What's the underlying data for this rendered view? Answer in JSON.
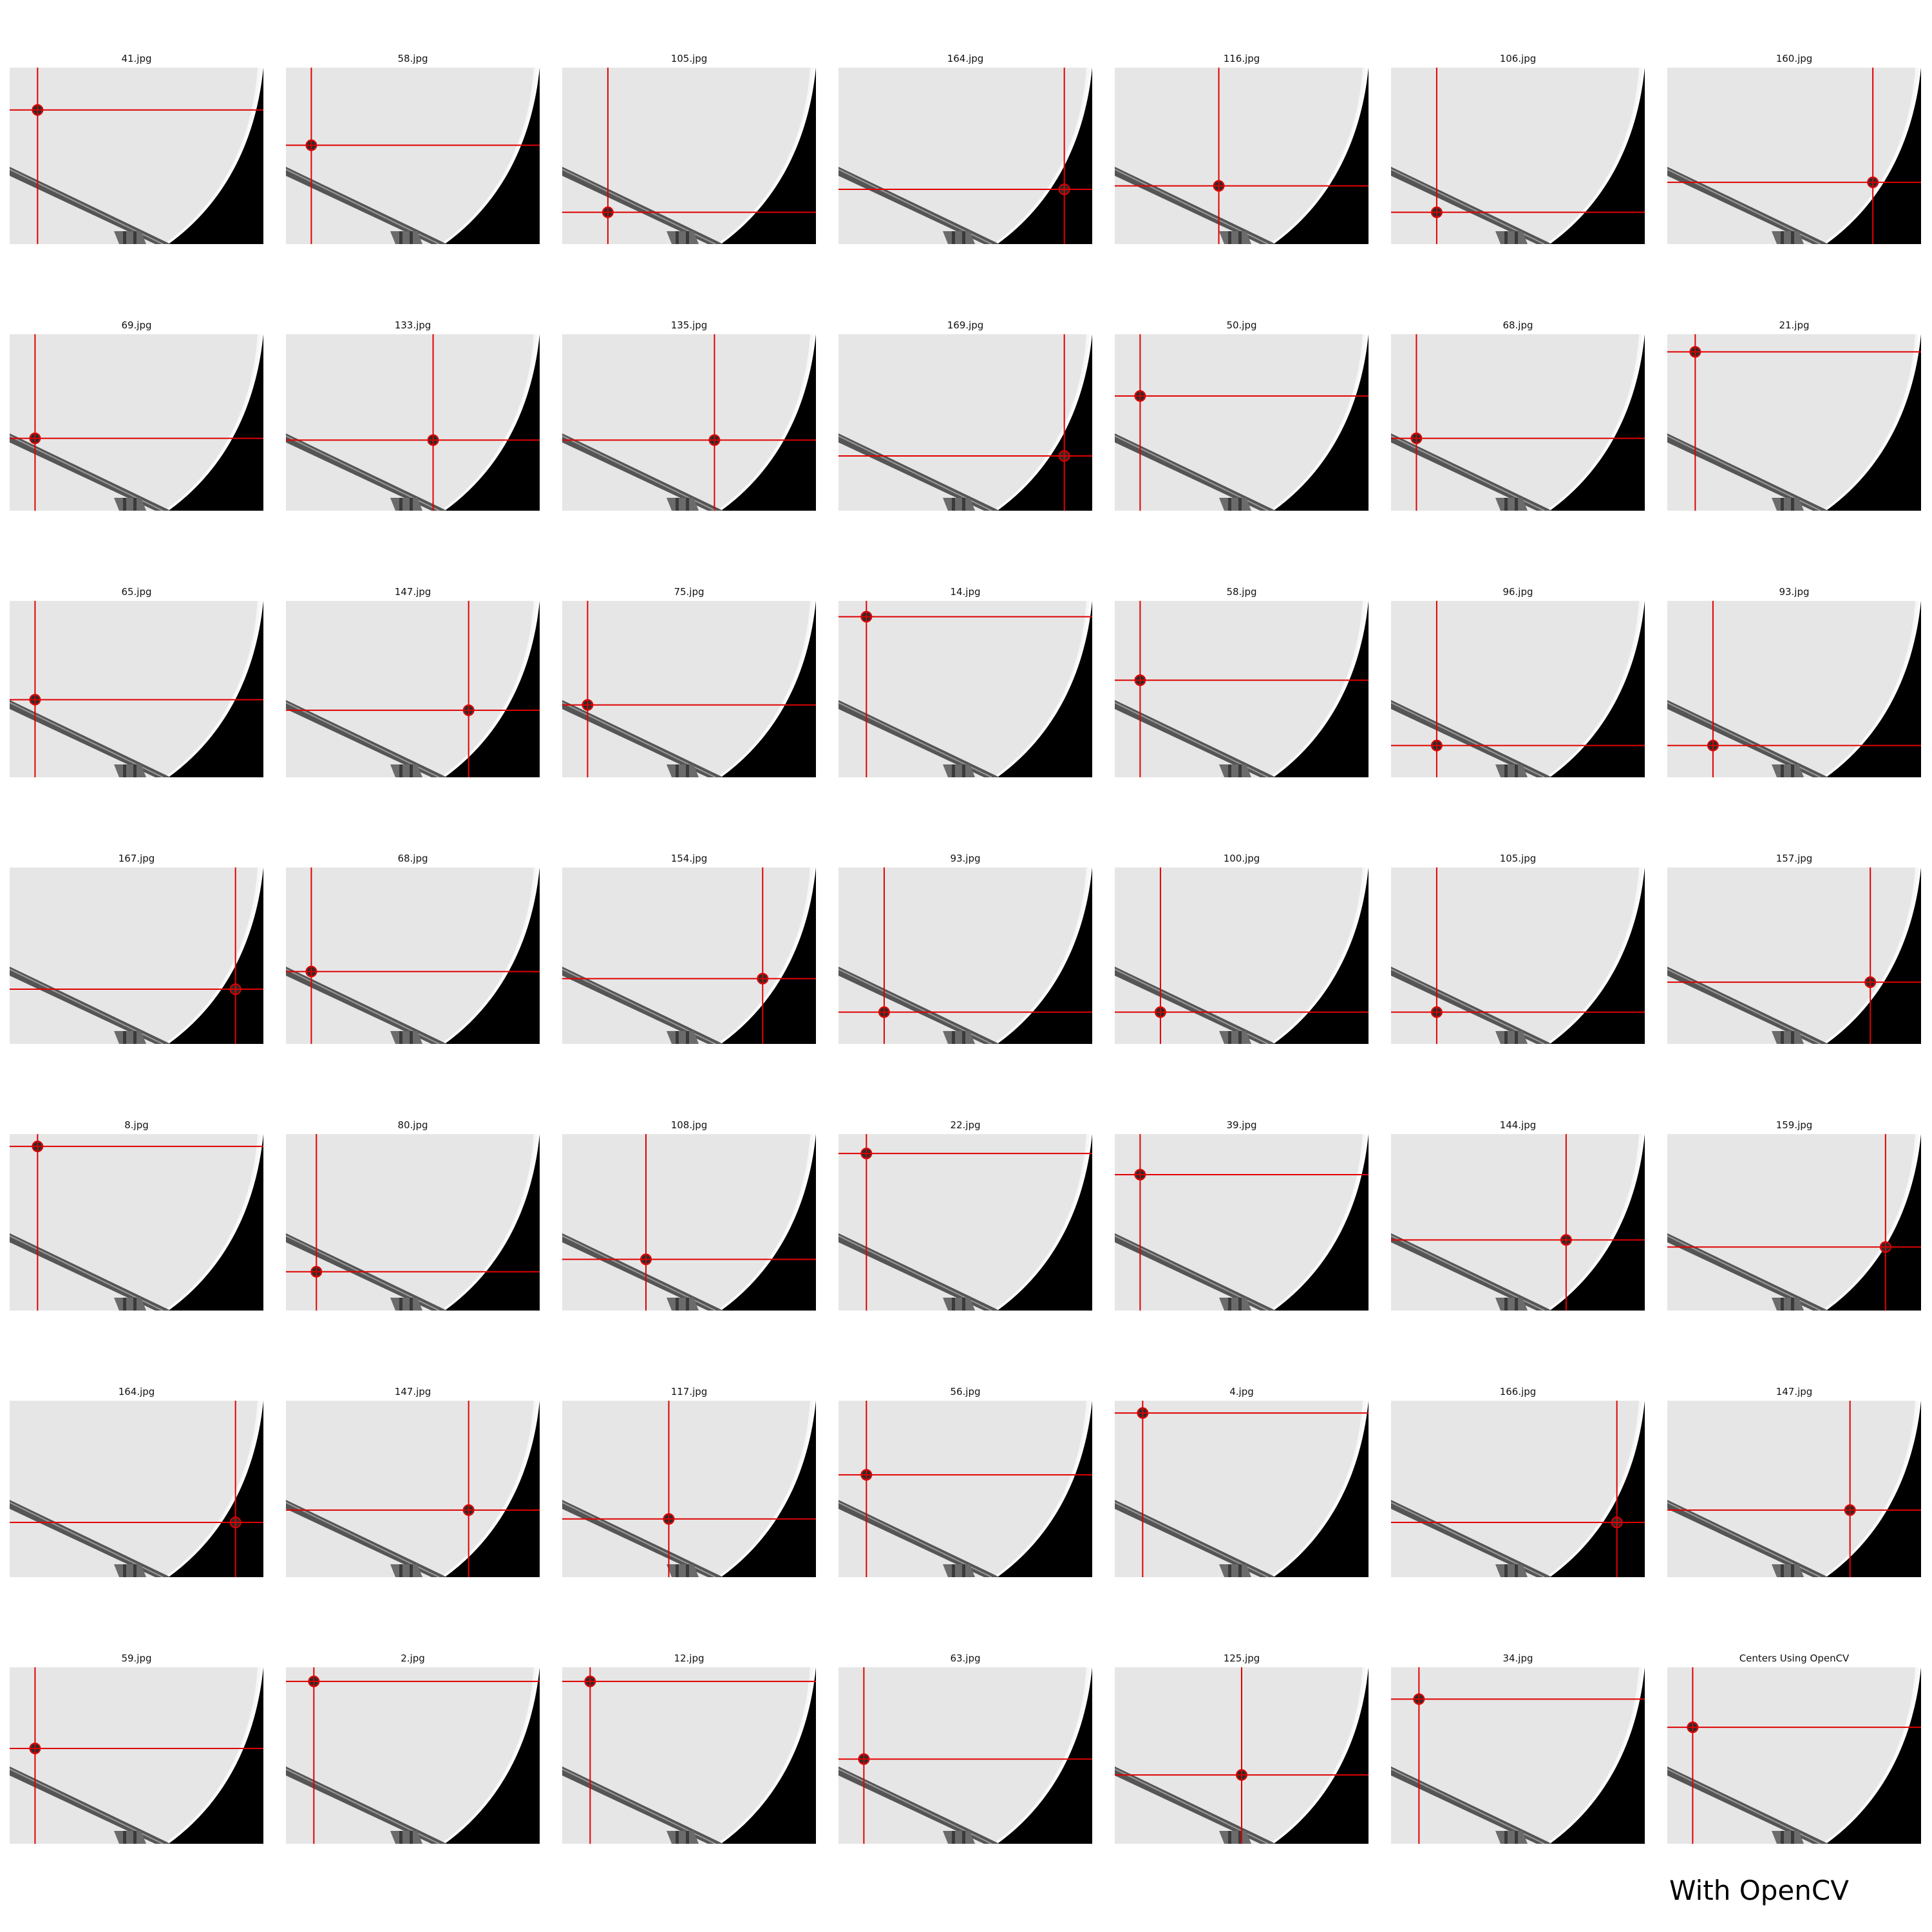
{
  "footer_label": "With OpenCV",
  "colors": {
    "crosshair": "#e00000",
    "frame_background": "#e6e6e6",
    "frame_shadow": "#000000"
  },
  "tiles": [
    {
      "title": "41.jpg",
      "marker": [
        0.11,
        0.24
      ]
    },
    {
      "title": "58.jpg",
      "marker": [
        0.1,
        0.44
      ]
    },
    {
      "title": "105.jpg",
      "marker": [
        0.18,
        0.82
      ]
    },
    {
      "title": "164.jpg",
      "marker": [
        0.89,
        0.69
      ]
    },
    {
      "title": "116.jpg",
      "marker": [
        0.41,
        0.67
      ]
    },
    {
      "title": "106.jpg",
      "marker": [
        0.18,
        0.82
      ]
    },
    {
      "title": "160.jpg",
      "marker": [
        0.81,
        0.65
      ]
    },
    {
      "title": "69.jpg",
      "marker": [
        0.1,
        0.59
      ]
    },
    {
      "title": "133.jpg",
      "marker": [
        0.58,
        0.6
      ]
    },
    {
      "title": "135.jpg",
      "marker": [
        0.6,
        0.6
      ]
    },
    {
      "title": "169.jpg",
      "marker": [
        0.89,
        0.69
      ]
    },
    {
      "title": "50.jpg",
      "marker": [
        0.1,
        0.35
      ]
    },
    {
      "title": "68.jpg",
      "marker": [
        0.1,
        0.59
      ]
    },
    {
      "title": "21.jpg",
      "marker": [
        0.11,
        0.1
      ]
    },
    {
      "title": "65.jpg",
      "marker": [
        0.1,
        0.56
      ]
    },
    {
      "title": "147.jpg",
      "marker": [
        0.72,
        0.62
      ]
    },
    {
      "title": "75.jpg",
      "marker": [
        0.1,
        0.59
      ]
    },
    {
      "title": "14.jpg",
      "marker": [
        0.11,
        0.09
      ]
    },
    {
      "title": "58.jpg",
      "marker": [
        0.1,
        0.45
      ]
    },
    {
      "title": "96.jpg",
      "marker": [
        0.18,
        0.82
      ]
    },
    {
      "title": "93.jpg",
      "marker": [
        0.18,
        0.82
      ]
    },
    {
      "title": "167.jpg",
      "marker": [
        0.89,
        0.69
      ]
    },
    {
      "title": "68.jpg",
      "marker": [
        0.1,
        0.59
      ]
    },
    {
      "title": "154.jpg",
      "marker": [
        0.79,
        0.63
      ]
    },
    {
      "title": "93.jpg",
      "marker": [
        0.18,
        0.82
      ]
    },
    {
      "title": "100.jpg",
      "marker": [
        0.18,
        0.82
      ]
    },
    {
      "title": "105.jpg",
      "marker": [
        0.18,
        0.82
      ]
    },
    {
      "title": "157.jpg",
      "marker": [
        0.8,
        0.65
      ]
    },
    {
      "title": "8.jpg",
      "marker": [
        0.11,
        0.07
      ]
    },
    {
      "title": "80.jpg",
      "marker": [
        0.12,
        0.78
      ]
    },
    {
      "title": "108.jpg",
      "marker": [
        0.33,
        0.71
      ]
    },
    {
      "title": "22.jpg",
      "marker": [
        0.11,
        0.11
      ]
    },
    {
      "title": "39.jpg",
      "marker": [
        0.1,
        0.23
      ]
    },
    {
      "title": "144.jpg",
      "marker": [
        0.69,
        0.6
      ]
    },
    {
      "title": "159.jpg",
      "marker": [
        0.86,
        0.64
      ]
    },
    {
      "title": "164.jpg",
      "marker": [
        0.89,
        0.69
      ]
    },
    {
      "title": "147.jpg",
      "marker": [
        0.72,
        0.62
      ]
    },
    {
      "title": "117.jpg",
      "marker": [
        0.42,
        0.67
      ]
    },
    {
      "title": "56.jpg",
      "marker": [
        0.11,
        0.42
      ]
    },
    {
      "title": "4.jpg",
      "marker": [
        0.11,
        0.07
      ]
    },
    {
      "title": "166.jpg",
      "marker": [
        0.89,
        0.69
      ]
    },
    {
      "title": "147.jpg",
      "marker": [
        0.72,
        0.62
      ]
    },
    {
      "title": "59.jpg",
      "marker": [
        0.1,
        0.46
      ]
    },
    {
      "title": "2.jpg",
      "marker": [
        0.11,
        0.08
      ]
    },
    {
      "title": "12.jpg",
      "marker": [
        0.11,
        0.08
      ]
    },
    {
      "title": "63.jpg",
      "marker": [
        0.1,
        0.52
      ]
    },
    {
      "title": "125.jpg",
      "marker": [
        0.5,
        0.61
      ]
    },
    {
      "title": "34.jpg",
      "marker": [
        0.11,
        0.18
      ]
    },
    {
      "title": "Centers Using OpenCV",
      "marker": [
        0.1,
        0.34
      ]
    }
  ]
}
